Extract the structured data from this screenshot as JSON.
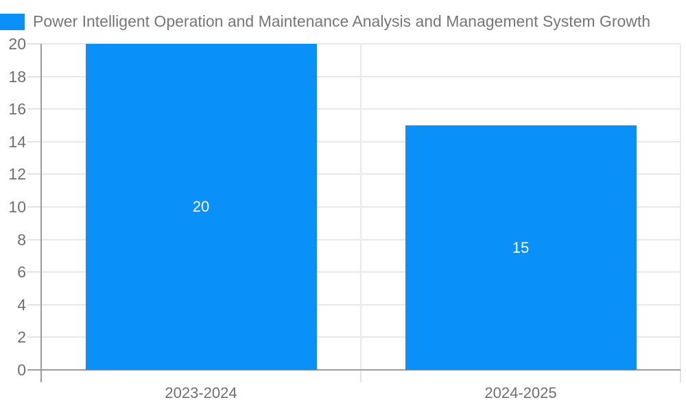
{
  "legend": {
    "label": "Power Intelligent Operation and Maintenance Analysis and Management System Growth",
    "swatch_icon": "legend-color-swatch"
  },
  "chart_data": {
    "type": "bar",
    "title": "",
    "series_name": "Power Intelligent Operation and Maintenance Analysis and Management System Growth",
    "categories": [
      "2023-2024",
      "2024-2025"
    ],
    "values": [
      20,
      15
    ],
    "value_labels": [
      "20",
      "15"
    ],
    "yticks": [
      0,
      2,
      4,
      6,
      8,
      10,
      12,
      14,
      16,
      18,
      20
    ],
    "ylim": [
      0,
      20
    ],
    "xlabel": "",
    "ylabel": "",
    "grid": true,
    "legend_position": "top-left",
    "colors": {
      "bar": "#0a91f9",
      "value_label": "#ffffff",
      "gridline": "#e8e8e8",
      "axis_line": "#9b9b9b",
      "tick_label": "#6f6f6f",
      "legend_text": "#767676"
    }
  }
}
